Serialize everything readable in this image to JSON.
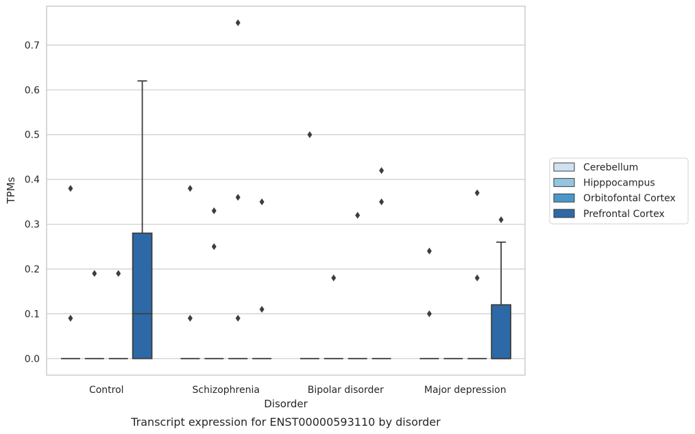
{
  "chart_data": {
    "type": "box",
    "xlabel": "Disorder",
    "ylabel": "TPMs",
    "caption": "Transcript expression for ENST00000593110 by disorder",
    "ylim": [
      -0.037,
      0.787
    ],
    "yticks": [
      0.0,
      0.1,
      0.2,
      0.3,
      0.4,
      0.5,
      0.6,
      0.7
    ],
    "ytick_labels": [
      "0.0",
      "0.1",
      "0.2",
      "0.3",
      "0.4",
      "0.5",
      "0.6",
      "0.7"
    ],
    "grid": "horizontal",
    "legend_position": "right",
    "categories": [
      "Control",
      "Schizophrenia",
      "Bipolar disorder",
      "Major depression"
    ],
    "series": [
      {
        "name": "Cerebellum",
        "color": "#d0e1f2",
        "boxes": [
          {
            "category": "Control",
            "q1": 0,
            "median": 0,
            "q3": 0,
            "whisker_low": 0,
            "whisker_high": 0,
            "outliers": [
              0.38,
              0.09
            ]
          },
          {
            "category": "Schizophrenia",
            "q1": 0,
            "median": 0,
            "q3": 0,
            "whisker_low": 0,
            "whisker_high": 0,
            "outliers": [
              0.38,
              0.09
            ]
          },
          {
            "category": "Bipolar disorder",
            "q1": 0,
            "median": 0,
            "q3": 0,
            "whisker_low": 0,
            "whisker_high": 0,
            "outliers": [
              0.5
            ]
          },
          {
            "category": "Major depression",
            "q1": 0,
            "median": 0,
            "q3": 0,
            "whisker_low": 0,
            "whisker_high": 0,
            "outliers": [
              0.24,
              0.1
            ]
          }
        ]
      },
      {
        "name": "Hipppocampus",
        "color": "#94c4df",
        "boxes": [
          {
            "category": "Control",
            "q1": 0,
            "median": 0,
            "q3": 0,
            "whisker_low": 0,
            "whisker_high": 0,
            "outliers": [
              0.19
            ]
          },
          {
            "category": "Schizophrenia",
            "q1": 0,
            "median": 0,
            "q3": 0,
            "whisker_low": 0,
            "whisker_high": 0,
            "outliers": [
              0.33,
              0.25
            ]
          },
          {
            "category": "Bipolar disorder",
            "q1": 0,
            "median": 0,
            "q3": 0,
            "whisker_low": 0,
            "whisker_high": 0,
            "outliers": [
              0.18
            ]
          },
          {
            "category": "Major depression",
            "q1": 0,
            "median": 0,
            "q3": 0,
            "whisker_low": 0,
            "whisker_high": 0,
            "outliers": []
          }
        ]
      },
      {
        "name": "Orbitofontal Cortex",
        "color": "#4a98c9",
        "boxes": [
          {
            "category": "Control",
            "q1": 0,
            "median": 0,
            "q3": 0,
            "whisker_low": 0,
            "whisker_high": 0,
            "outliers": [
              0.19
            ]
          },
          {
            "category": "Schizophrenia",
            "q1": 0,
            "median": 0,
            "q3": 0,
            "whisker_low": 0,
            "whisker_high": 0,
            "outliers": [
              0.75,
              0.36,
              0.09
            ]
          },
          {
            "category": "Bipolar disorder",
            "q1": 0,
            "median": 0,
            "q3": 0,
            "whisker_low": 0,
            "whisker_high": 0,
            "outliers": [
              0.32
            ]
          },
          {
            "category": "Major depression",
            "q1": 0,
            "median": 0,
            "q3": 0,
            "whisker_low": 0,
            "whisker_high": 0,
            "outliers": [
              0.37,
              0.18
            ]
          }
        ]
      },
      {
        "name": "Prefrontal Cortex",
        "color": "#2d69a6",
        "boxes": [
          {
            "category": "Control",
            "q1": 0,
            "median": 0.1,
            "q3": 0.28,
            "whisker_low": 0,
            "whisker_high": 0.62,
            "outliers": []
          },
          {
            "category": "Schizophrenia",
            "q1": 0,
            "median": 0,
            "q3": 0,
            "whisker_low": 0,
            "whisker_high": 0,
            "outliers": [
              0.35,
              0.11
            ]
          },
          {
            "category": "Bipolar disorder",
            "q1": 0,
            "median": 0,
            "q3": 0,
            "whisker_low": 0,
            "whisker_high": 0,
            "outliers": [
              0.42,
              0.35
            ]
          },
          {
            "category": "Major depression",
            "q1": 0,
            "median": 0,
            "q3": 0.12,
            "whisker_low": 0,
            "whisker_high": 0.26,
            "outliers": [
              0.31
            ]
          }
        ]
      }
    ]
  }
}
